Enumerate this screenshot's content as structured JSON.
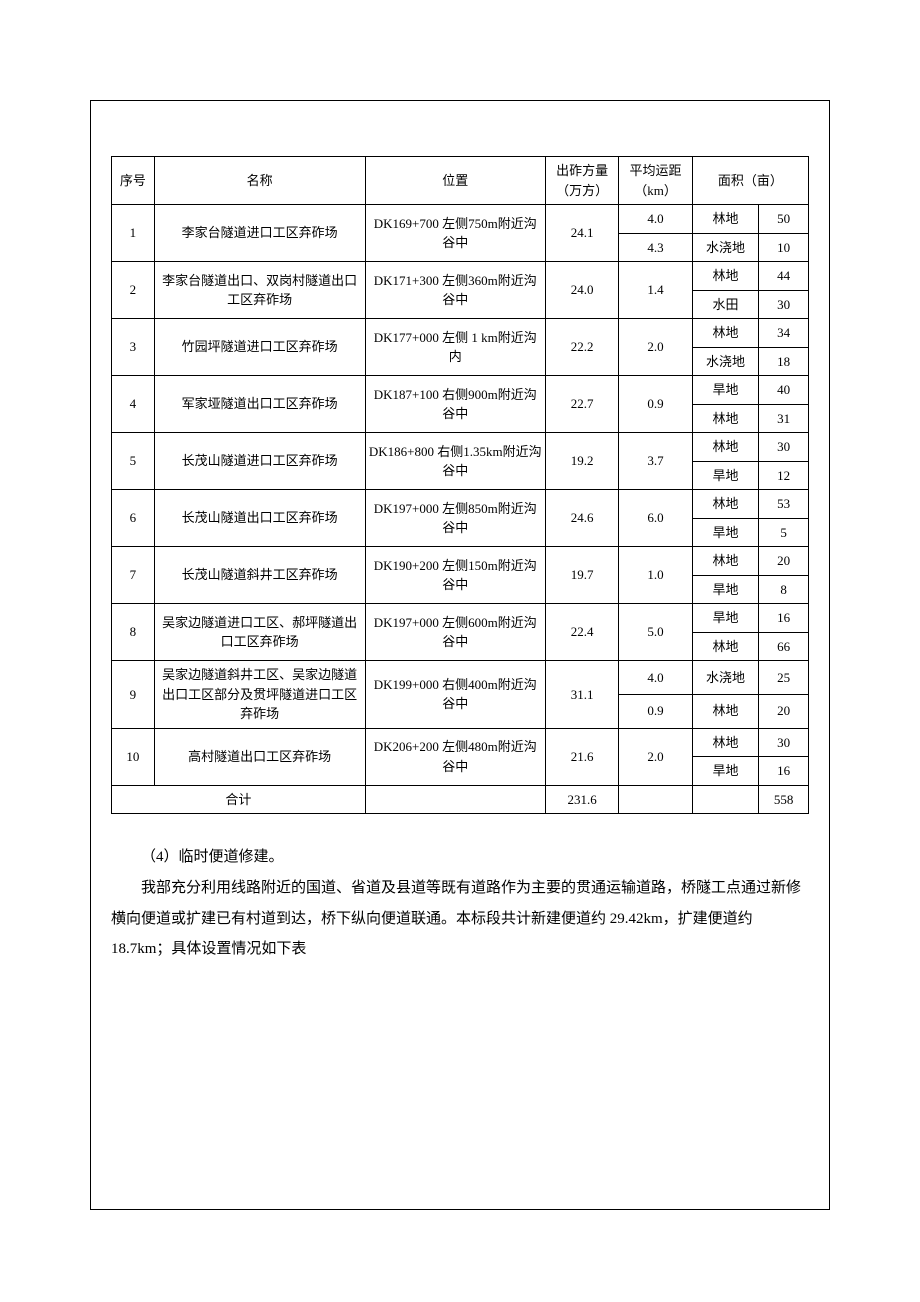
{
  "table": {
    "headers": {
      "seq": "序号",
      "name": "名称",
      "location": "位置",
      "volume": "出砟方量（万方）",
      "distance": "平均运距（km）",
      "area": "面积（亩）"
    },
    "rows": [
      {
        "seq": "1",
        "name": "李家台隧道进口工区弃砟场",
        "location": "DK169+700 左侧750m附近沟谷中",
        "volume": "24.1",
        "dists": [
          "4.0",
          "4.3"
        ],
        "lands": [
          [
            "林地",
            "50"
          ],
          [
            "水浇地",
            "10"
          ]
        ]
      },
      {
        "seq": "2",
        "name": "李家台隧道出口、双岗村隧道出口工区弃砟场",
        "location": "DK171+300 左侧360m附近沟谷中",
        "volume": "24.0",
        "dists": [
          "1.4"
        ],
        "lands": [
          [
            "林地",
            "44"
          ],
          [
            "水田",
            "30"
          ]
        ]
      },
      {
        "seq": "3",
        "name": "竹园坪隧道进口工区弃砟场",
        "location": "DK177+000 左侧 1 km附近沟内",
        "volume": "22.2",
        "dists": [
          "2.0"
        ],
        "lands": [
          [
            "林地",
            "34"
          ],
          [
            "水浇地",
            "18"
          ]
        ]
      },
      {
        "seq": "4",
        "name": "军家垭隧道出口工区弃砟场",
        "location": "DK187+100 右侧900m附近沟谷中",
        "volume": "22.7",
        "dists": [
          "0.9"
        ],
        "lands": [
          [
            "旱地",
            "40"
          ],
          [
            "林地",
            "31"
          ]
        ]
      },
      {
        "seq": "5",
        "name": "长茂山隧道进口工区弃砟场",
        "location": "DK186+800 右侧1.35km附近沟谷中",
        "volume": "19.2",
        "dists": [
          "3.7"
        ],
        "lands": [
          [
            "林地",
            "30"
          ],
          [
            "旱地",
            "12"
          ]
        ]
      },
      {
        "seq": "6",
        "name": "长茂山隧道出口工区弃砟场",
        "location": "DK197+000 左侧850m附近沟谷中",
        "volume": "24.6",
        "dists": [
          "6.0"
        ],
        "lands": [
          [
            "林地",
            "53"
          ],
          [
            "旱地",
            "5"
          ]
        ]
      },
      {
        "seq": "7",
        "name": "长茂山隧道斜井工区弃砟场",
        "location": "DK190+200 左侧150m附近沟谷中",
        "volume": "19.7",
        "dists": [
          "1.0"
        ],
        "lands": [
          [
            "林地",
            "20"
          ],
          [
            "旱地",
            "8"
          ]
        ]
      },
      {
        "seq": "8",
        "name": "吴家边隧道进口工区、郝坪隧道出口工区弃砟场",
        "location": "DK197+000 左侧600m附近沟谷中",
        "volume": "22.4",
        "dists": [
          "5.0"
        ],
        "lands": [
          [
            "旱地",
            "16"
          ],
          [
            "林地",
            "66"
          ]
        ]
      },
      {
        "seq": "9",
        "name": "吴家边隧道斜井工区、吴家边隧道出口工区部分及贯坪隧道进口工区弃砟场",
        "location": "DK199+000 右侧400m附近沟谷中",
        "volume": "31.1",
        "dists": [
          "4.0",
          "0.9"
        ],
        "lands": [
          [
            "水浇地",
            "25"
          ],
          [
            "林地",
            "20"
          ]
        ]
      },
      {
        "seq": "10",
        "name": "高村隧道出口工区弃砟场",
        "location": "DK206+200 左侧480m附近沟谷中",
        "volume": "21.6",
        "dists": [
          "2.0"
        ],
        "lands": [
          [
            "林地",
            "30"
          ],
          [
            "旱地",
            "16"
          ]
        ]
      }
    ],
    "total": {
      "label": "合计",
      "volume": "231.6",
      "area": "558"
    }
  },
  "paragraphs": {
    "p1": "（4）临时便道修建。",
    "p2": "我部充分利用线路附近的国道、省道及县道等既有道路作为主要的贯通运输道路，桥隧工点通过新修横向便道或扩建已有村道到达，桥下纵向便道联通。本标段共计新建便道约 29.42km，扩建便道约 18.7km；具体设置情况如下表"
  }
}
